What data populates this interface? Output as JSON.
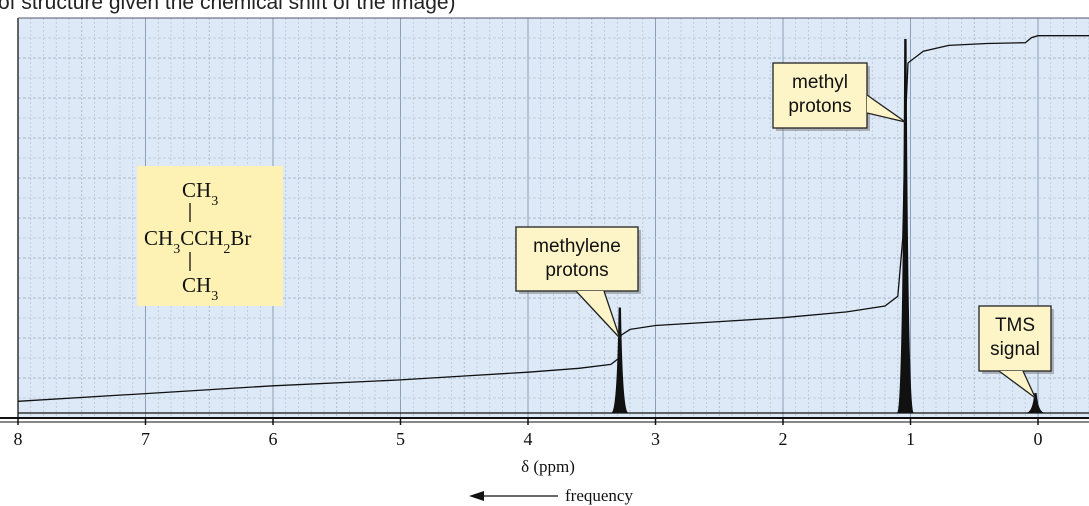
{
  "caption_fragment": "of structure given the chemical shift of the image)",
  "chart_data": {
    "type": "line",
    "title": "",
    "xlabel": "δ (ppm)",
    "ylabel": "",
    "xlim": [
      8,
      -0.4
    ],
    "x_reversed": true,
    "x_ticks": [
      8,
      7,
      6,
      5,
      4,
      3,
      2,
      1,
      0
    ],
    "grid": true,
    "direction_label": "frequency",
    "peaks": [
      {
        "name": "methylene protons",
        "x": 3.28,
        "height": 0.27
      },
      {
        "name": "methyl protons",
        "x": 1.04,
        "height": 0.96
      },
      {
        "name": "TMS signal",
        "x": 0.02,
        "height": 0.05
      }
    ],
    "integration_curve": {
      "x": [
        8.0,
        7.0,
        6.0,
        5.0,
        4.5,
        4.0,
        3.6,
        3.35,
        3.29,
        3.27,
        3.2,
        3.0,
        2.5,
        2.0,
        1.5,
        1.2,
        1.1,
        1.06,
        1.04,
        1.02,
        0.9,
        0.7,
        0.4,
        0.1,
        0.05,
        0.0,
        -0.4
      ],
      "y": [
        0.03,
        0.05,
        0.07,
        0.085,
        0.095,
        0.105,
        0.115,
        0.125,
        0.14,
        0.2,
        0.215,
        0.225,
        0.235,
        0.245,
        0.26,
        0.275,
        0.3,
        0.45,
        0.75,
        0.9,
        0.93,
        0.945,
        0.95,
        0.952,
        0.965,
        0.97,
        0.97
      ]
    },
    "annotations": [
      {
        "lines": [
          "methyl",
          "protons"
        ],
        "x": 1.04
      },
      {
        "lines": [
          "methylene",
          "protons"
        ],
        "x": 3.28
      },
      {
        "lines": [
          "TMS",
          "signal"
        ],
        "x": 0.02
      }
    ],
    "structure": {
      "top": "CH3",
      "middle": "CH3CCH2Br",
      "bottom": "CH3"
    }
  }
}
